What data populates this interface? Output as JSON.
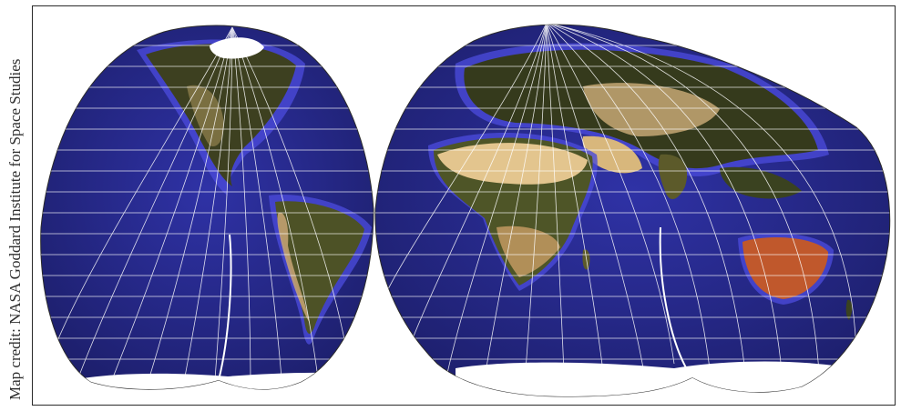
{
  "credit": {
    "text": "Map credit: NASA Goddard Institute for Space Studies"
  },
  "map": {
    "projection": "interrupted-homolosine",
    "lobes": 4,
    "colors": {
      "ocean": "#2c2f9c",
      "ocean_deep": "#1a1c63",
      "shelf": "#4a4ad8",
      "land_dark": "#29321a",
      "land_mid": "#5a5a2c",
      "desert": "#d9b980",
      "desert_light": "#ecd6a6",
      "outback": "#c0582c",
      "ice": "#ffffff",
      "graticule": "#ffffff",
      "border": "#2a2a2a"
    },
    "graticule_interval_degrees": 10
  }
}
